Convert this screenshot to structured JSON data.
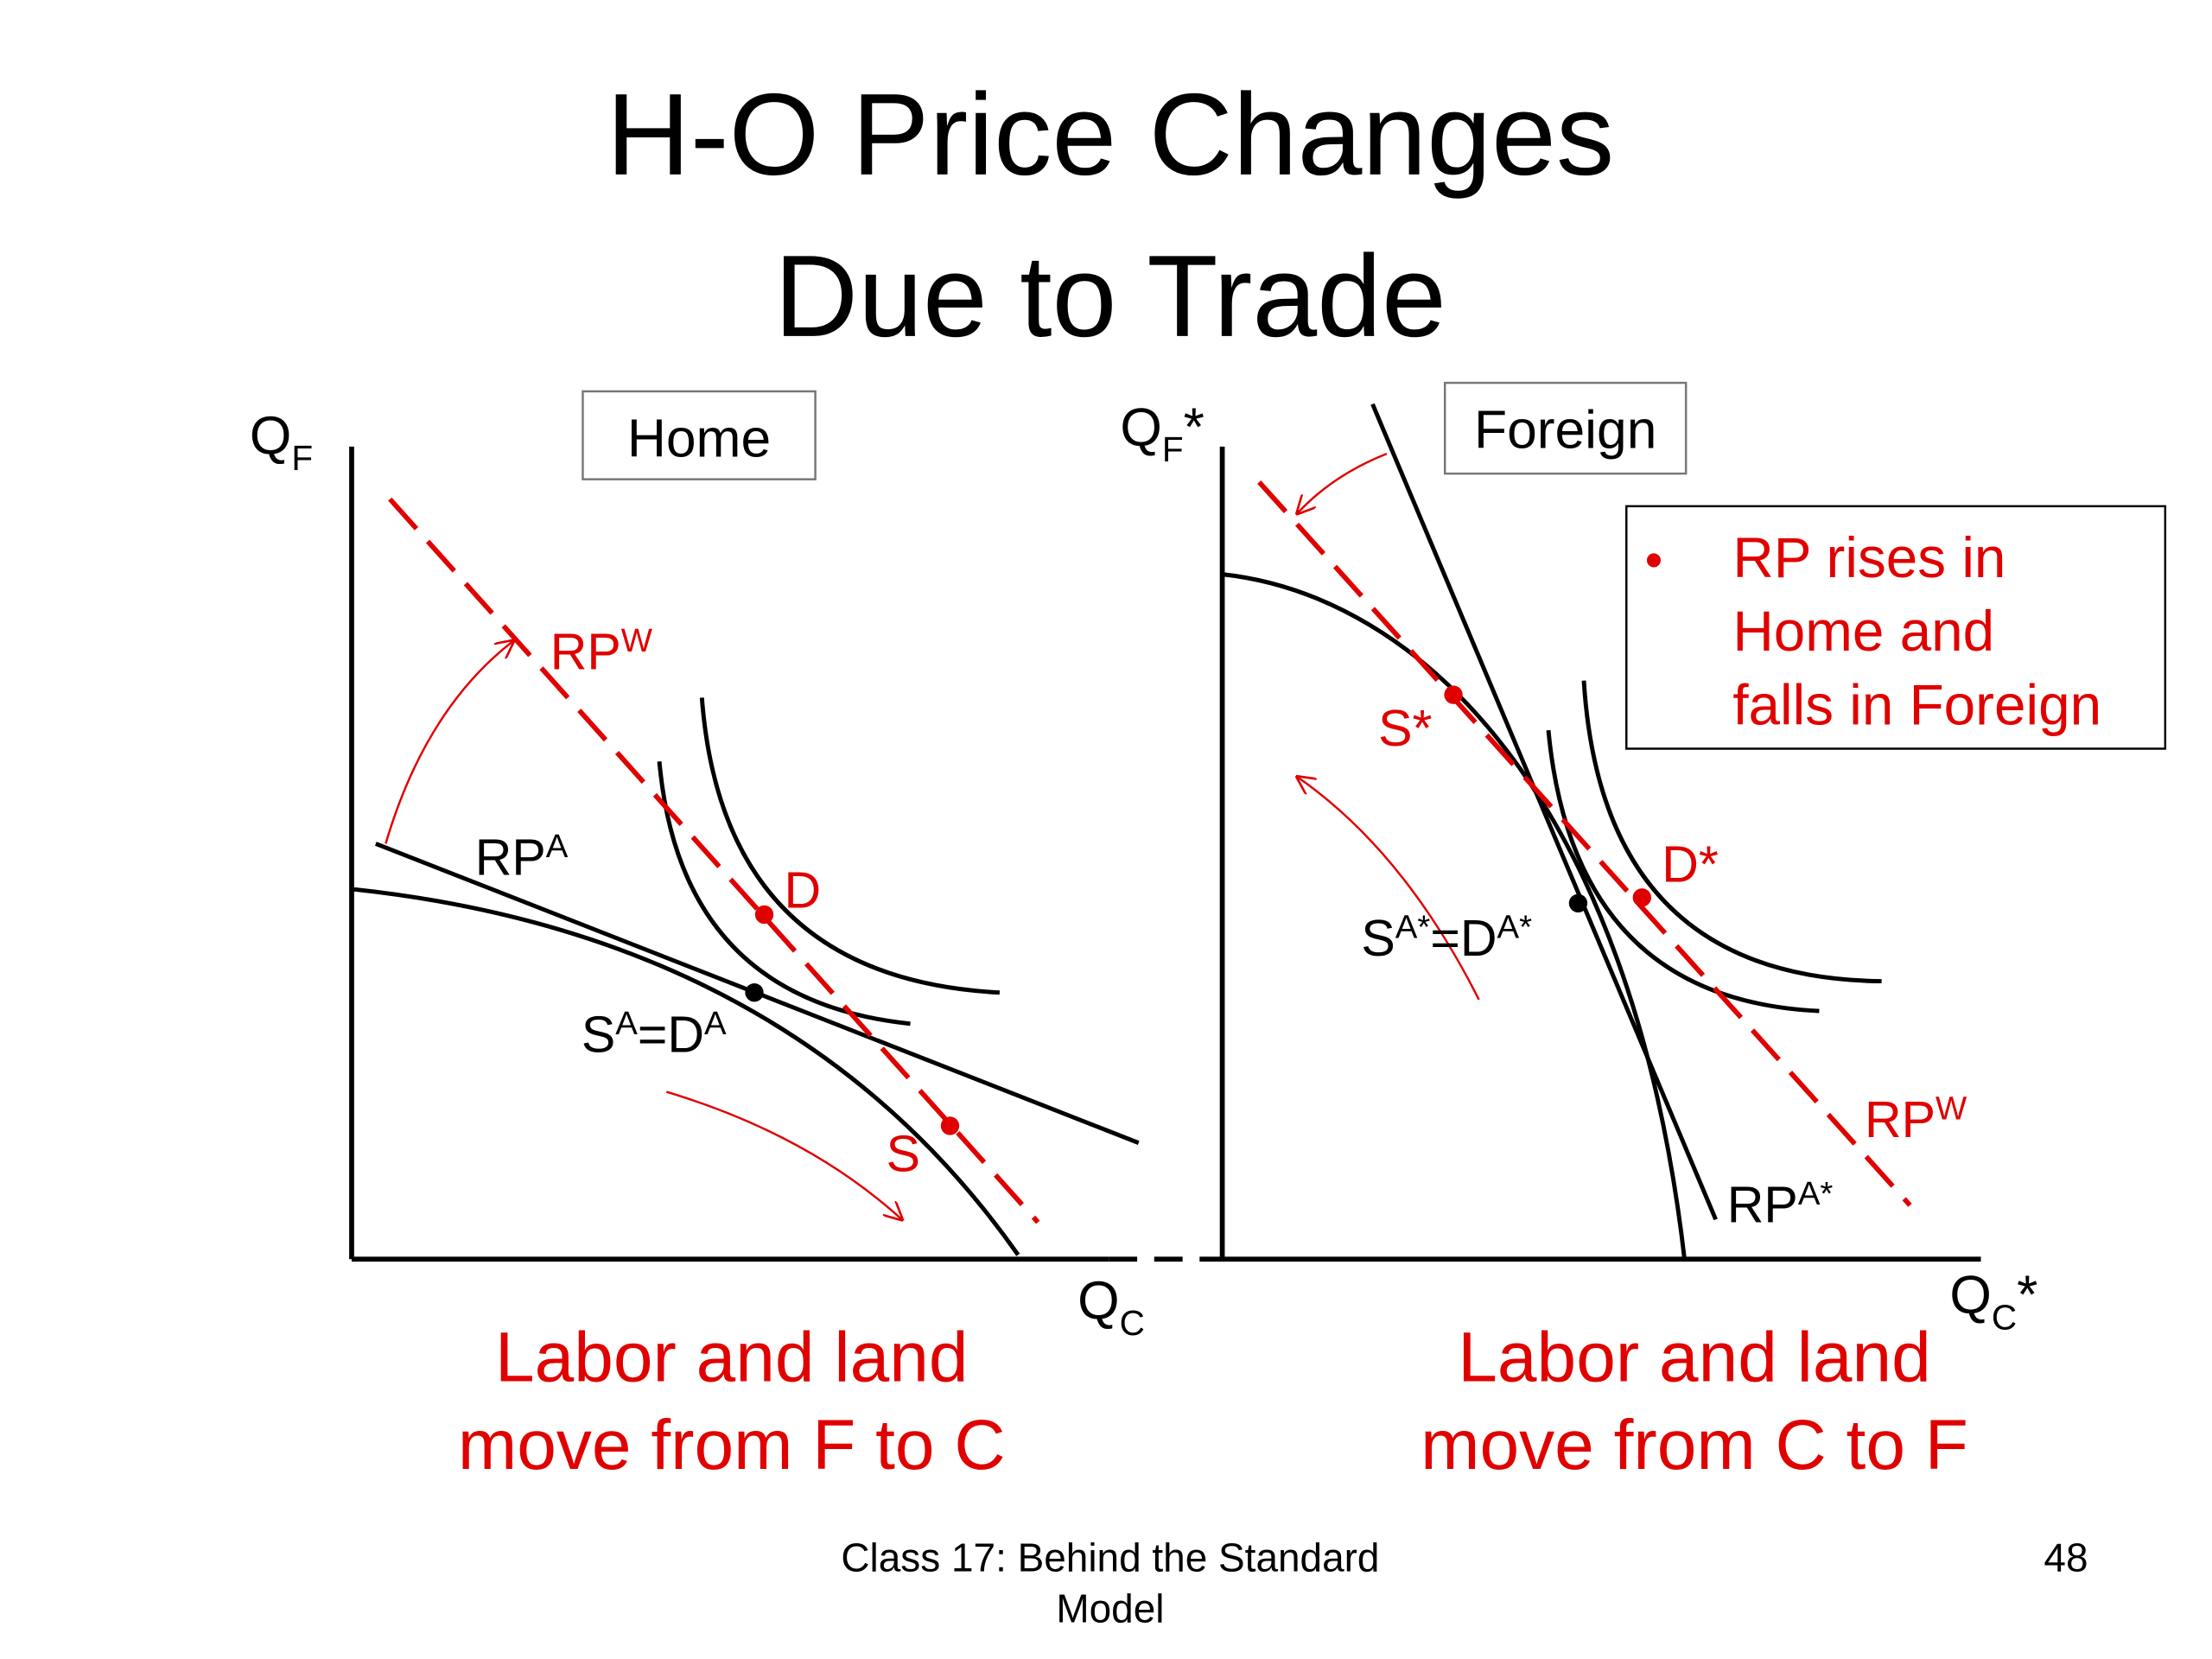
{
  "title": [
    "H-O Price Changes",
    "Due to Trade"
  ],
  "home": {
    "label": "Home",
    "y_axis": [
      {
        "t": "Q"
      },
      {
        "t": "F",
        "sub": true
      }
    ],
    "x_axis": [
      {
        "t": "Q"
      },
      {
        "t": "C",
        "sub": true
      }
    ],
    "rpw": [
      {
        "t": "RP"
      },
      {
        "t": "W",
        "sup": true
      }
    ],
    "rpa": [
      {
        "t": "RP"
      },
      {
        "t": "A",
        "sup": true
      }
    ],
    "equilibrium": [
      {
        "t": "S"
      },
      {
        "t": "A",
        "sup": true
      },
      {
        "t": "=D"
      },
      {
        "t": "A",
        "sup": true
      }
    ],
    "d": [
      {
        "t": "D"
      }
    ],
    "s": [
      {
        "t": "S"
      }
    ],
    "caption": [
      "Labor and land",
      "move from F to C"
    ]
  },
  "foreign": {
    "label": "Foreign",
    "y_axis": [
      {
        "t": "Q"
      },
      {
        "t": "F",
        "sub": true
      },
      {
        "t": "*"
      }
    ],
    "x_axis": [
      {
        "t": "Q"
      },
      {
        "t": "C",
        "sub": true
      },
      {
        "t": "*"
      }
    ],
    "rpw": [
      {
        "t": "RP"
      },
      {
        "t": "W",
        "sup": true
      }
    ],
    "rpa": [
      {
        "t": "RP"
      },
      {
        "t": "A*",
        "sup": true
      }
    ],
    "equilibrium": [
      {
        "t": "S"
      },
      {
        "t": "A*",
        "sup": true
      },
      {
        "t": "=D"
      },
      {
        "t": "A*",
        "sup": true
      }
    ],
    "d": [
      {
        "t": "D*"
      }
    ],
    "s": [
      {
        "t": "S*"
      }
    ],
    "caption": [
      "Labor and land",
      "move from C to F"
    ]
  },
  "note": {
    "bullet": "•",
    "lines": [
      "RP rises in",
      "Home and",
      "falls in Foreign"
    ]
  },
  "footer": {
    "text": [
      "Class 17:  Behind the Standard",
      "Model"
    ],
    "page": "48"
  }
}
